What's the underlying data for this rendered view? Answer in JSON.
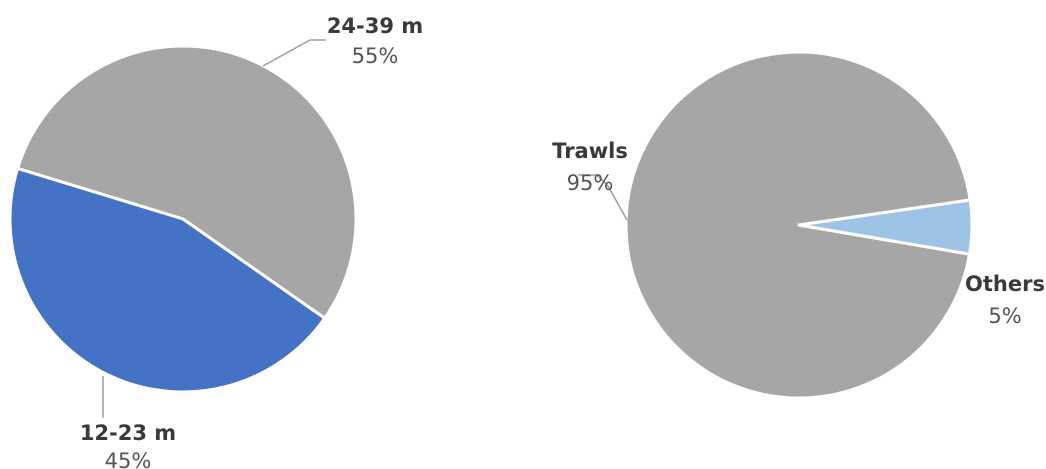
{
  "chart_data": [
    {
      "type": "pie",
      "slices": [
        {
          "label": "24-39 m",
          "value": 55,
          "pct_label": "55%",
          "color": "#a6a6a6"
        },
        {
          "label": "12-23 m",
          "value": 45,
          "pct_label": "45%",
          "color": "#4472c4"
        }
      ]
    },
    {
      "type": "pie",
      "slices": [
        {
          "label": "Trawls",
          "value": 95,
          "pct_label": "95%",
          "color": "#a6a6a6"
        },
        {
          "label": "Others",
          "value": 5,
          "pct_label": "5%",
          "color": "#9dc3e6"
        }
      ]
    }
  ]
}
